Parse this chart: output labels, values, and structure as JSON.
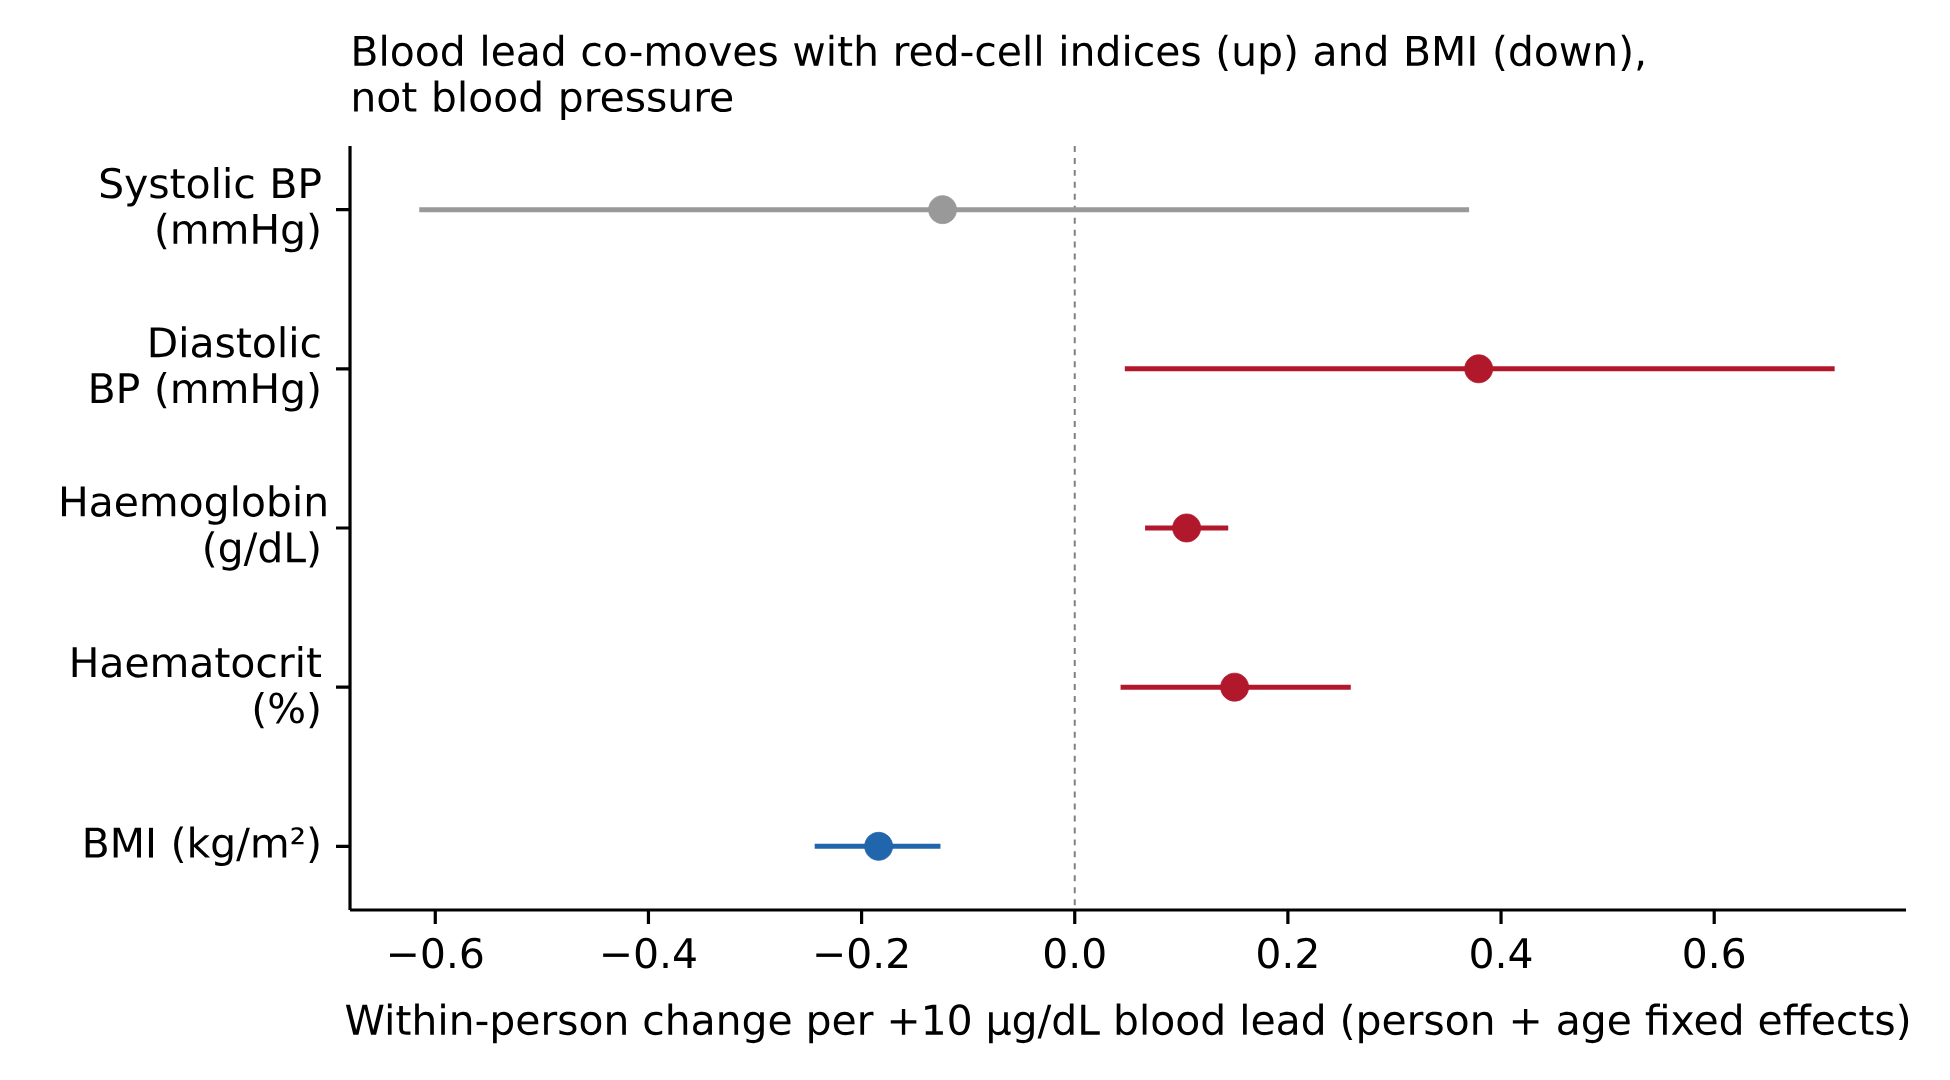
{
  "chart_data": {
    "type": "scatter",
    "orientation": "horizontal",
    "title": "Blood lead co-moves with red-cell indices (up) and BMI (down), not blood pressure",
    "xlabel": "Within-person change per +10 µg/dL blood lead (person + age fixed effects)",
    "categories": [
      "Systolic BP (mmHg)",
      "Diastolic BP (mmHg)",
      "Haemoglobin (g/dL)",
      "Haematocrit (%)",
      "BMI (kg/m²)"
    ],
    "values": [
      -0.124,
      0.379,
      0.105,
      0.15,
      -0.184
    ],
    "errors": [
      [
        -0.615,
        0.37
      ],
      [
        0.047,
        0.713
      ],
      [
        0.066,
        0.144
      ],
      [
        0.043,
        0.259
      ],
      [
        -0.244,
        -0.126
      ]
    ],
    "colors": [
      "#999999",
      "#b2182b",
      "#b2182b",
      "#b2182b",
      "#2166ac"
    ],
    "marker": "circle",
    "xlim": [
      -0.68,
      0.78
    ],
    "xticks": [
      {
        "value": -0.6,
        "label": "−0.6"
      },
      {
        "value": -0.4,
        "label": "−0.4"
      },
      {
        "value": -0.2,
        "label": "−0.2"
      },
      {
        "value": 0,
        "label": "0.0"
      },
      0.2,
      0.4,
      0.6
    ],
    "ref_lines": [
      {
        "axis": "x",
        "value": 0,
        "color": "#808080",
        "line_style": "dashed"
      }
    ]
  }
}
